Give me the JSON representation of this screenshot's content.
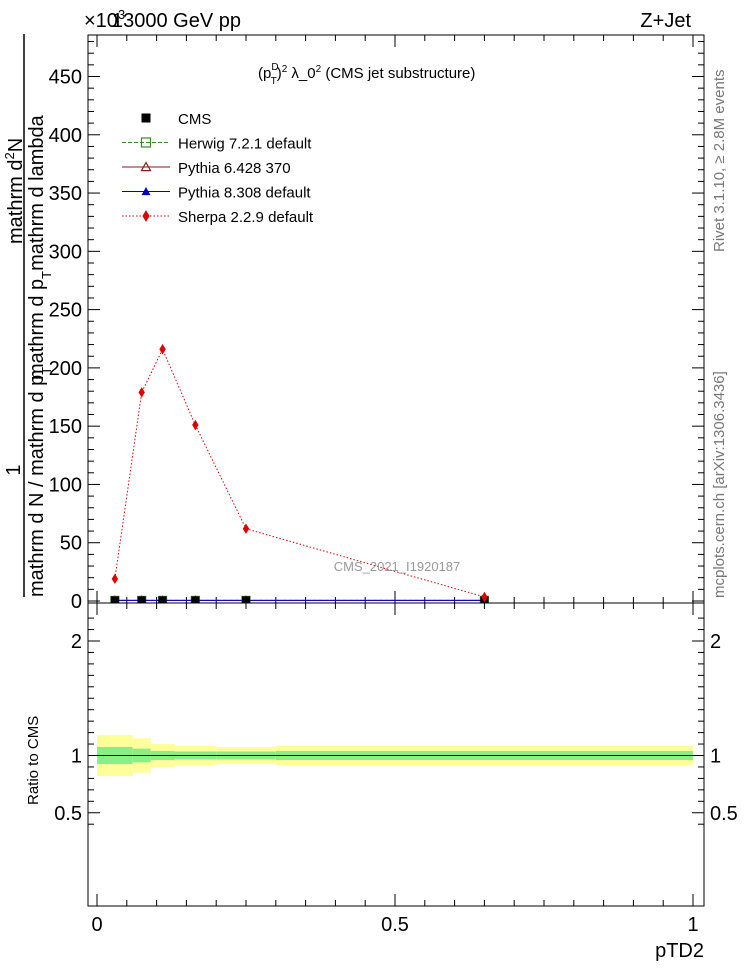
{
  "header": {
    "left": "13000 GeV pp",
    "right": "Z+Jet",
    "exponent": "×10",
    "exponent_power": "3"
  },
  "side_labels": {
    "rivet": "Rivet 3.1.10, ≥ 2.8M events",
    "mcplots": "mcplots.cern.ch [arXiv:1306.3436]"
  },
  "plot_title": {
    "pre": "(p",
    "sup_D": "D",
    "sub_T": "T",
    "post_sup": "2",
    "mid": " λ_0",
    "mid_sup": "2",
    "rest": " (CMS jet substructure)"
  },
  "watermark": "CMS_2021_I1920187",
  "ratio_ylabel": "Ratio to CMS",
  "xlabel": "pTD2",
  "ylabel": {
    "one": "1",
    "denominator": "mathrm d N / mathrm d p",
    "denominator_sub": "T",
    "numerator_line1": "mathrm d",
    "numerator_sup": "2",
    "numerator_line1_end": "N",
    "numerator_line2": "mathrm d p",
    "numerator_line2_sub": "T",
    "numerator_line2_end": "mathrm d lambda"
  },
  "legend": [
    {
      "label": "CMS",
      "color": "#000000",
      "marker": "square",
      "line": "none"
    },
    {
      "label": "Herwig 7.2.1 default",
      "color": "#3a8a2a",
      "marker": "open-square",
      "line": "dashed"
    },
    {
      "label": "Pythia 6.428 370",
      "color": "#8b1a1a",
      "marker": "open-triangle",
      "line": "solid"
    },
    {
      "label": "Pythia 8.308 default",
      "color": "#0000cc",
      "marker": "triangle",
      "line": "solid"
    },
    {
      "label": "Sherpa 2.2.9 default",
      "color": "#e00000",
      "marker": "diamond",
      "line": "dotted"
    }
  ],
  "chart_data": {
    "type": "line",
    "xlabel": "pTD2",
    "ylabel": "1 / (mathrm d N / mathrm d p_T) · mathrm d^2 N / (mathrm d p_T mathrm d lambda)",
    "xlim": [
      0,
      1
    ],
    "ylim": [
      0,
      485
    ],
    "y_multiplier": "×10^3",
    "x_ticks": [
      0,
      0.5,
      1
    ],
    "y_ticks": [
      0,
      50,
      100,
      150,
      200,
      250,
      300,
      350,
      400,
      450
    ],
    "bin_edges": [
      0,
      0.06,
      0.09,
      0.13,
      0.2,
      0.3,
      1.0
    ],
    "series": [
      {
        "name": "CMS",
        "x": [
          0.03,
          0.075,
          0.11,
          0.165,
          0.25,
          0.65
        ],
        "values": [
          0.5,
          0.5,
          0.5,
          0.5,
          0.5,
          0.5
        ]
      },
      {
        "name": "Herwig 7.2.1 default",
        "x": [
          0.03,
          0.075,
          0.11,
          0.165,
          0.25,
          0.65
        ],
        "values": [
          0.5,
          0.5,
          0.5,
          0.5,
          0.5,
          0.5
        ]
      },
      {
        "name": "Pythia 6.428 370",
        "x": [
          0.03,
          0.075,
          0.11,
          0.165,
          0.25,
          0.65
        ],
        "values": [
          0.5,
          0.5,
          0.5,
          0.5,
          0.5,
          0.5
        ]
      },
      {
        "name": "Pythia 8.308 default",
        "x": [
          0.03,
          0.075,
          0.11,
          0.165,
          0.25,
          0.65
        ],
        "values": [
          0.5,
          0.5,
          0.5,
          0.5,
          0.5,
          0.5
        ]
      },
      {
        "name": "Sherpa 2.2.9 default",
        "x": [
          0.03,
          0.075,
          0.11,
          0.165,
          0.25,
          0.65
        ],
        "values": [
          19,
          179,
          216,
          151,
          62,
          3.5
        ]
      }
    ],
    "ratio": {
      "ylabel": "Ratio to CMS",
      "ylim": [
        0.35,
        2.3
      ],
      "y_ticks": [
        0.5,
        1,
        2
      ],
      "bands": [
        {
          "x0": 0,
          "x1": 0.06,
          "inner": [
            0.925,
            1.075
          ],
          "outer": [
            0.82,
            1.18
          ]
        },
        {
          "x0": 0.06,
          "x1": 0.09,
          "inner": [
            0.94,
            1.06
          ],
          "outer": [
            0.85,
            1.15
          ]
        },
        {
          "x0": 0.09,
          "x1": 0.13,
          "inner": [
            0.96,
            1.04
          ],
          "outer": [
            0.9,
            1.1
          ]
        },
        {
          "x0": 0.13,
          "x1": 0.2,
          "inner": [
            0.965,
            1.035
          ],
          "outer": [
            0.915,
            1.085
          ]
        },
        {
          "x0": 0.2,
          "x1": 0.3,
          "inner": [
            0.965,
            1.035
          ],
          "outer": [
            0.925,
            1.075
          ]
        },
        {
          "x0": 0.3,
          "x1": 1.0,
          "inner": [
            0.96,
            1.04
          ],
          "outer": [
            0.915,
            1.085
          ]
        }
      ]
    }
  }
}
